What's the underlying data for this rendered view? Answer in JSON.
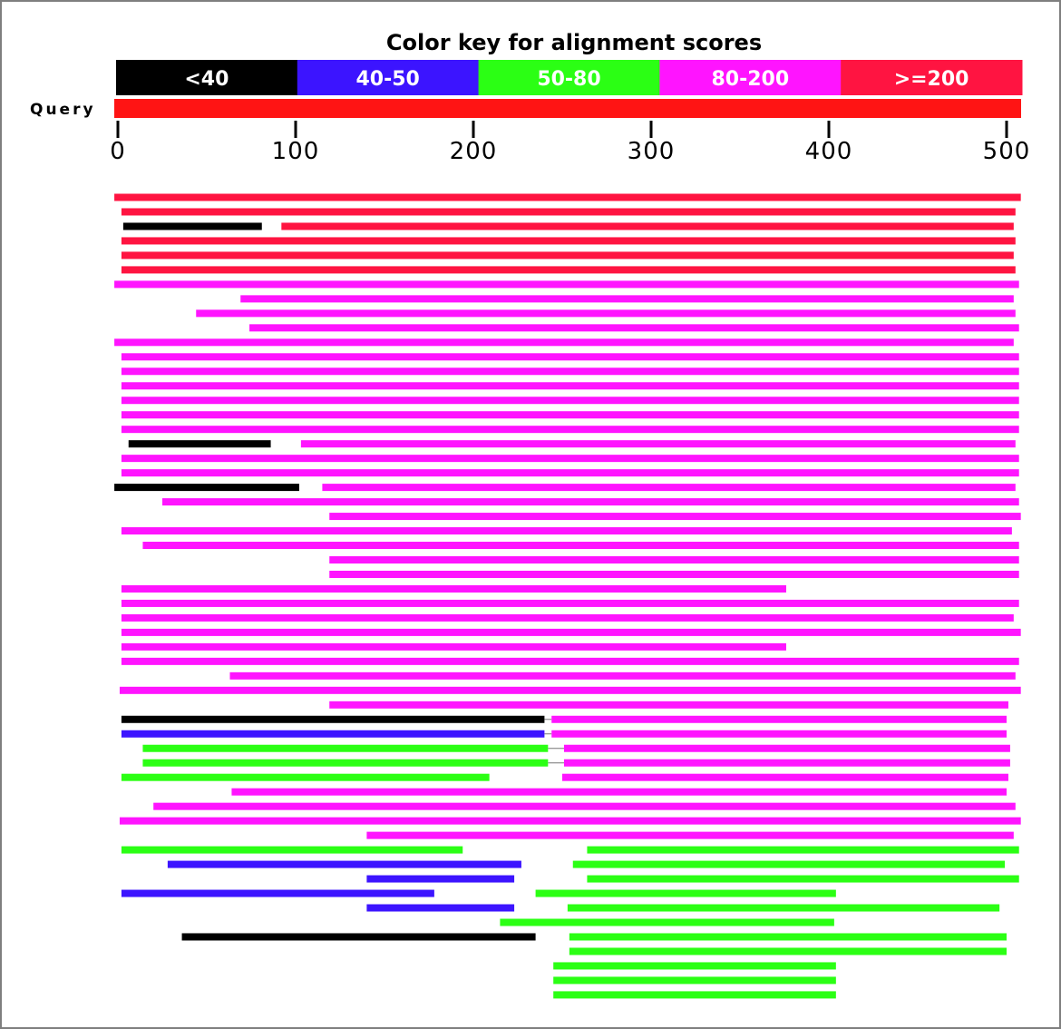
{
  "chart_data": {
    "type": "alignment-graphic",
    "title": "Color key for alignment scores",
    "query_label": "Query",
    "query_length": 510,
    "query_color": "#ff1414",
    "axis_ticks": [
      "0",
      "100",
      "200",
      "300",
      "400",
      "500"
    ],
    "axis_tick_values": [
      0,
      100,
      200,
      300,
      400,
      500
    ],
    "score_bins": [
      {
        "label": "<40",
        "color": "#000000"
      },
      {
        "label": "40-50",
        "color": "#3c14ff"
      },
      {
        "label": "50-80",
        "color": "#2bff14"
      },
      {
        "label": "80-200",
        "color": "#ff14ff"
      },
      {
        "label": ">=200",
        "color": "#ff1441"
      }
    ],
    "hits": [
      [
        {
          "start": -2,
          "end": 508,
          "bin": 4
        }
      ],
      [
        {
          "start": 2,
          "end": 505,
          "bin": 4
        }
      ],
      [
        {
          "start": 3,
          "end": 81,
          "bin": 0
        },
        {
          "start": 92,
          "end": 504,
          "bin": 4
        }
      ],
      [
        {
          "start": 2,
          "end": 505,
          "bin": 4
        }
      ],
      [
        {
          "start": 2,
          "end": 504,
          "bin": 4
        }
      ],
      [
        {
          "start": 2,
          "end": 505,
          "bin": 4
        }
      ],
      [
        {
          "start": -2,
          "end": 507,
          "bin": 3
        }
      ],
      [
        {
          "start": 69,
          "end": 504,
          "bin": 3
        }
      ],
      [
        {
          "start": 44,
          "end": 505,
          "bin": 3
        }
      ],
      [
        {
          "start": 74,
          "end": 507,
          "bin": 3
        }
      ],
      [
        {
          "start": -2,
          "end": 504,
          "bin": 3
        }
      ],
      [
        {
          "start": 2,
          "end": 507,
          "bin": 3
        }
      ],
      [
        {
          "start": 2,
          "end": 507,
          "bin": 3
        }
      ],
      [
        {
          "start": 2,
          "end": 507,
          "bin": 3
        }
      ],
      [
        {
          "start": 2,
          "end": 507,
          "bin": 3
        }
      ],
      [
        {
          "start": 2,
          "end": 507,
          "bin": 3
        }
      ],
      [
        {
          "start": 2,
          "end": 507,
          "bin": 3
        }
      ],
      [
        {
          "start": 6,
          "end": 86,
          "bin": 0
        },
        {
          "start": 103,
          "end": 505,
          "bin": 3
        }
      ],
      [
        {
          "start": 2,
          "end": 507,
          "bin": 3
        }
      ],
      [
        {
          "start": 2,
          "end": 507,
          "bin": 3
        }
      ],
      [
        {
          "start": -2,
          "end": 102,
          "bin": 0
        },
        {
          "start": 115,
          "end": 505,
          "bin": 3
        }
      ],
      [
        {
          "start": 25,
          "end": 507,
          "bin": 3
        }
      ],
      [
        {
          "start": 119,
          "end": 508,
          "bin": 3
        }
      ],
      [
        {
          "start": 2,
          "end": 503,
          "bin": 3
        }
      ],
      [
        {
          "start": 14,
          "end": 507,
          "bin": 3
        }
      ],
      [
        {
          "start": 119,
          "end": 507,
          "bin": 3
        }
      ],
      [
        {
          "start": 119,
          "end": 507,
          "bin": 3
        }
      ],
      [
        {
          "start": 2,
          "end": 376,
          "bin": 3
        }
      ],
      [
        {
          "start": 2,
          "end": 507,
          "bin": 3
        }
      ],
      [
        {
          "start": 2,
          "end": 504,
          "bin": 3
        }
      ],
      [
        {
          "start": 2,
          "end": 508,
          "bin": 3
        }
      ],
      [
        {
          "start": 2,
          "end": 376,
          "bin": 3
        }
      ],
      [
        {
          "start": 2,
          "end": 507,
          "bin": 3
        }
      ],
      [
        {
          "start": 63,
          "end": 505,
          "bin": 3
        }
      ],
      [
        {
          "start": 1,
          "end": 508,
          "bin": 3
        }
      ],
      [
        {
          "start": 119,
          "end": 501,
          "bin": 3
        }
      ],
      [
        {
          "start": 2,
          "end": 240,
          "bin": 0
        },
        {
          "start": 244,
          "end": 500,
          "bin": 3
        }
      ],
      [
        {
          "start": 2,
          "end": 240,
          "bin": 1
        },
        {
          "start": 244,
          "end": 500,
          "bin": 3
        }
      ],
      [
        {
          "start": 14,
          "end": 242,
          "bin": 2
        },
        {
          "start": 251,
          "end": 502,
          "bin": 3
        }
      ],
      [
        {
          "start": 14,
          "end": 242,
          "bin": 2
        },
        {
          "start": 251,
          "end": 502,
          "bin": 3
        }
      ],
      [
        {
          "start": 2,
          "end": 209,
          "bin": 2
        },
        {
          "start": 250,
          "end": 501,
          "bin": 3
        }
      ],
      [
        {
          "start": 64,
          "end": 500,
          "bin": 3
        }
      ],
      [
        {
          "start": 20,
          "end": 505,
          "bin": 3
        }
      ],
      [
        {
          "start": 1,
          "end": 508,
          "bin": 3
        }
      ],
      [
        {
          "start": 140,
          "end": 504,
          "bin": 3
        }
      ],
      [
        {
          "start": 2,
          "end": 194,
          "bin": 2
        },
        {
          "start": 264,
          "end": 507,
          "bin": 2
        }
      ],
      [
        {
          "start": 28,
          "end": 227,
          "bin": 1
        },
        {
          "start": 256,
          "end": 499,
          "bin": 2
        }
      ],
      [
        {
          "start": 140,
          "end": 223,
          "bin": 1
        },
        {
          "start": 264,
          "end": 507,
          "bin": 2
        }
      ],
      [
        {
          "start": 2,
          "end": 178,
          "bin": 1
        },
        {
          "start": 235,
          "end": 404,
          "bin": 2
        }
      ],
      [
        {
          "start": 140,
          "end": 223,
          "bin": 1
        },
        {
          "start": 253,
          "end": 496,
          "bin": 2
        }
      ],
      [
        {
          "start": 215,
          "end": 403,
          "bin": 2
        }
      ],
      [
        {
          "start": 36,
          "end": 235,
          "bin": 0
        },
        {
          "start": 254,
          "end": 500,
          "bin": 2
        }
      ],
      [
        {
          "start": 254,
          "end": 500,
          "bin": 2
        }
      ],
      [
        {
          "start": 245,
          "end": 404,
          "bin": 2
        }
      ],
      [
        {
          "start": 245,
          "end": 404,
          "bin": 2
        }
      ],
      [
        {
          "start": 245,
          "end": 404,
          "bin": 2
        }
      ]
    ]
  }
}
